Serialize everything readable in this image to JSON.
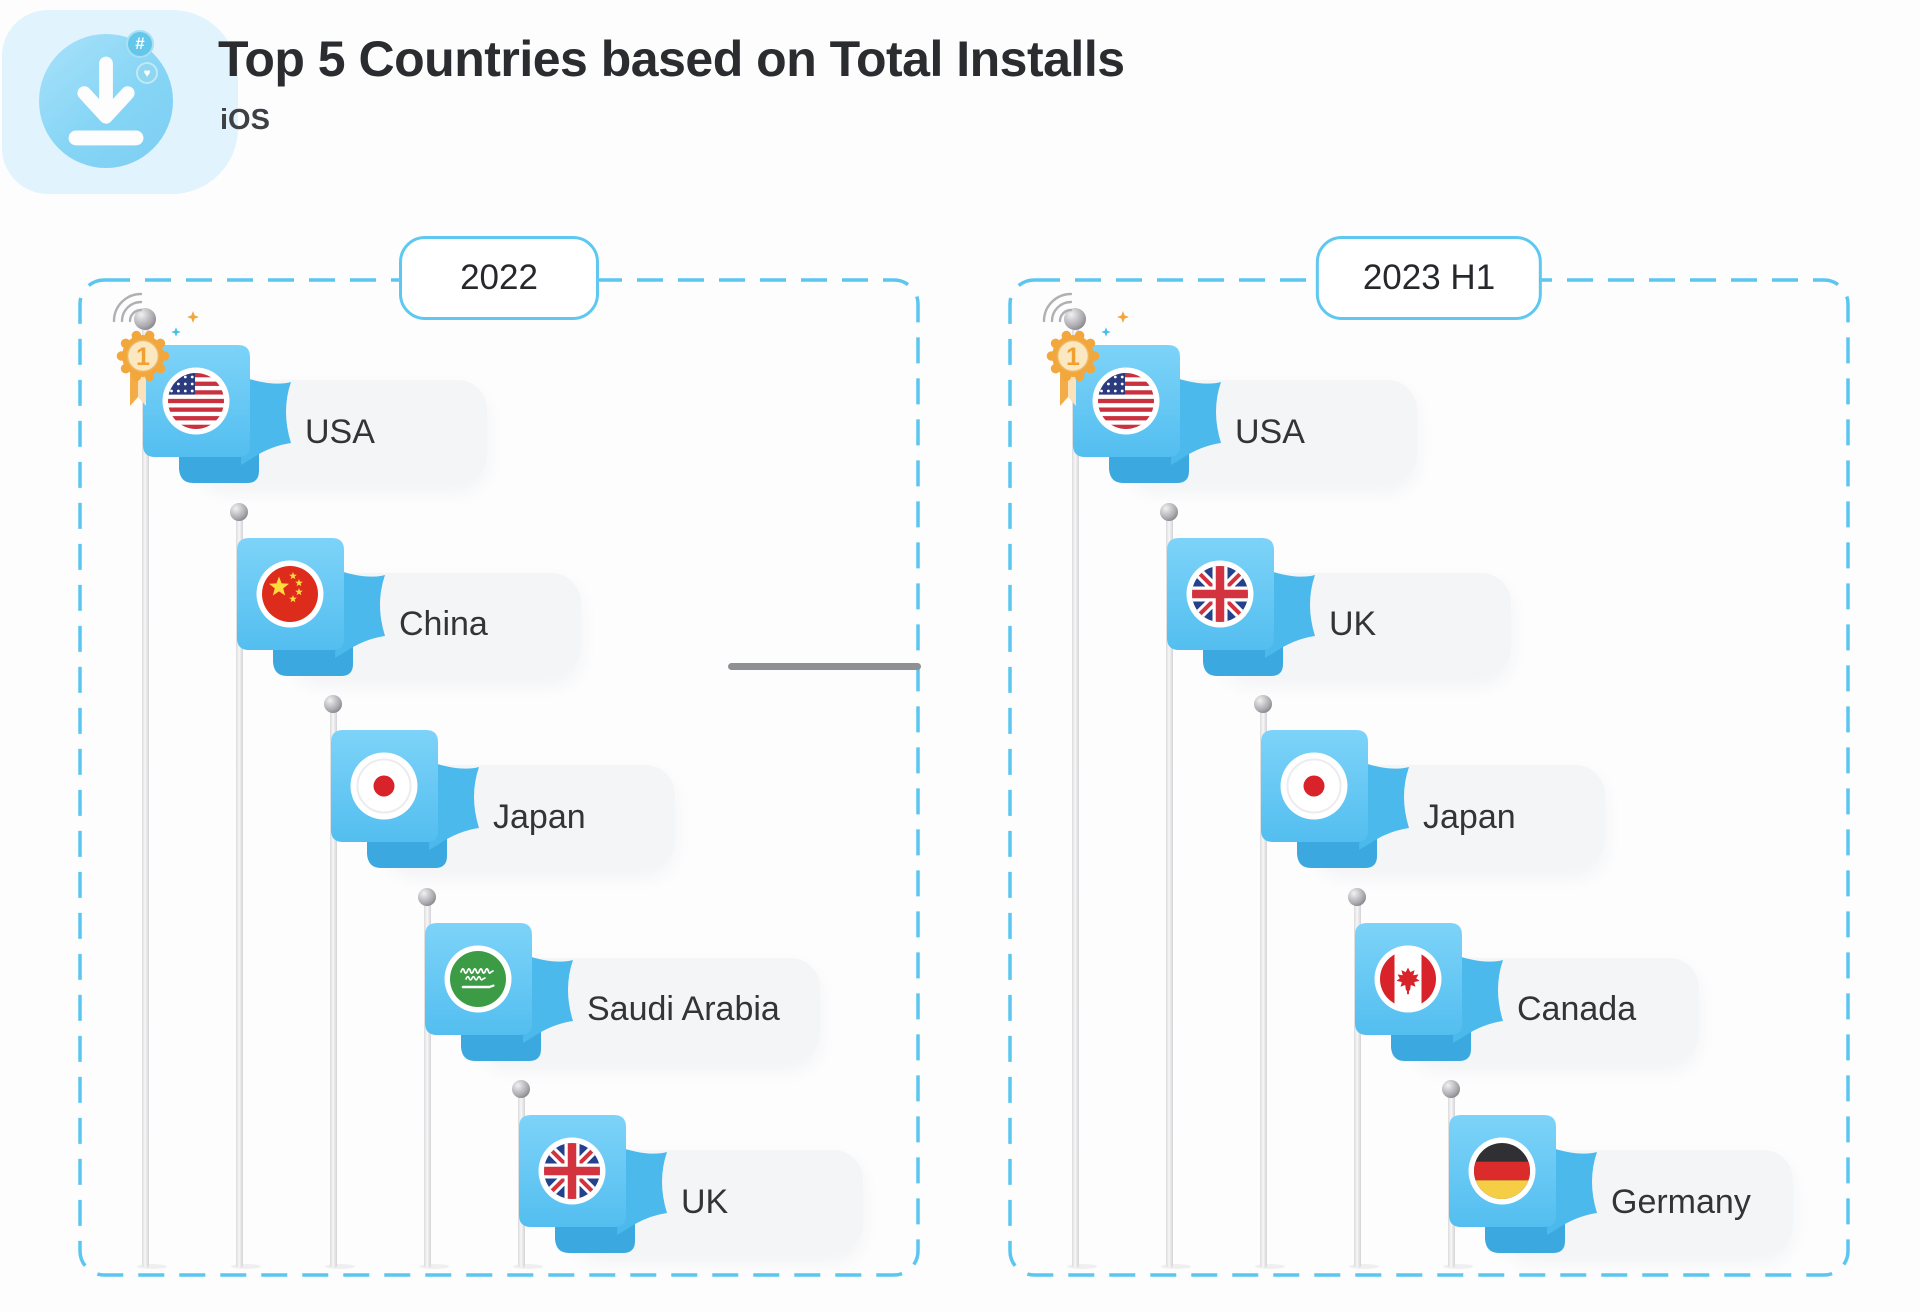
{
  "header": {
    "title": "Top 5 Countries based on Total Installs",
    "subtitle": "iOS",
    "icons": {
      "hash": "#",
      "heart": "♥",
      "download": "download-icon"
    }
  },
  "panels": [
    {
      "label": "2022",
      "countries": [
        {
          "rank": 1,
          "name": "USA",
          "flag_icon": "flag-usa"
        },
        {
          "rank": 2,
          "name": "China",
          "flag_icon": "flag-china"
        },
        {
          "rank": 3,
          "name": "Japan",
          "flag_icon": "flag-japan"
        },
        {
          "rank": 4,
          "name": "Saudi Arabia",
          "flag_icon": "flag-saudi-arabia"
        },
        {
          "rank": 5,
          "name": "UK",
          "flag_icon": "flag-uk"
        }
      ]
    },
    {
      "label": "2023 H1",
      "countries": [
        {
          "rank": 1,
          "name": "USA",
          "flag_icon": "flag-usa"
        },
        {
          "rank": 2,
          "name": "UK",
          "flag_icon": "flag-uk"
        },
        {
          "rank": 3,
          "name": "Japan",
          "flag_icon": "flag-japan"
        },
        {
          "rank": 4,
          "name": "Canada",
          "flag_icon": "flag-canada"
        },
        {
          "rank": 5,
          "name": "Germany",
          "flag_icon": "flag-germany"
        }
      ]
    }
  ],
  "colors": {
    "accent_blue": "#5BC6EF",
    "flag_blue": "#62C6F2",
    "flag_fold_blue": "#3FAEE3",
    "label_pill_gray": "#F4F5F7",
    "text_dark": "#2B2C30",
    "medal_gold": "#F2A73C",
    "connector_gray": "#8F9094"
  },
  "chart_data": {
    "type": "table",
    "title": "Top 5 Countries based on Total Installs",
    "subtitle": "iOS",
    "columns": [
      "2022",
      "2023 H1"
    ],
    "ranks": [
      1,
      2,
      3,
      4,
      5
    ],
    "rows": [
      [
        "USA",
        "USA"
      ],
      [
        "China",
        "UK"
      ],
      [
        "Japan",
        "Japan"
      ],
      [
        "Saudi Arabia",
        "Canada"
      ],
      [
        "UK",
        "Germany"
      ]
    ]
  }
}
